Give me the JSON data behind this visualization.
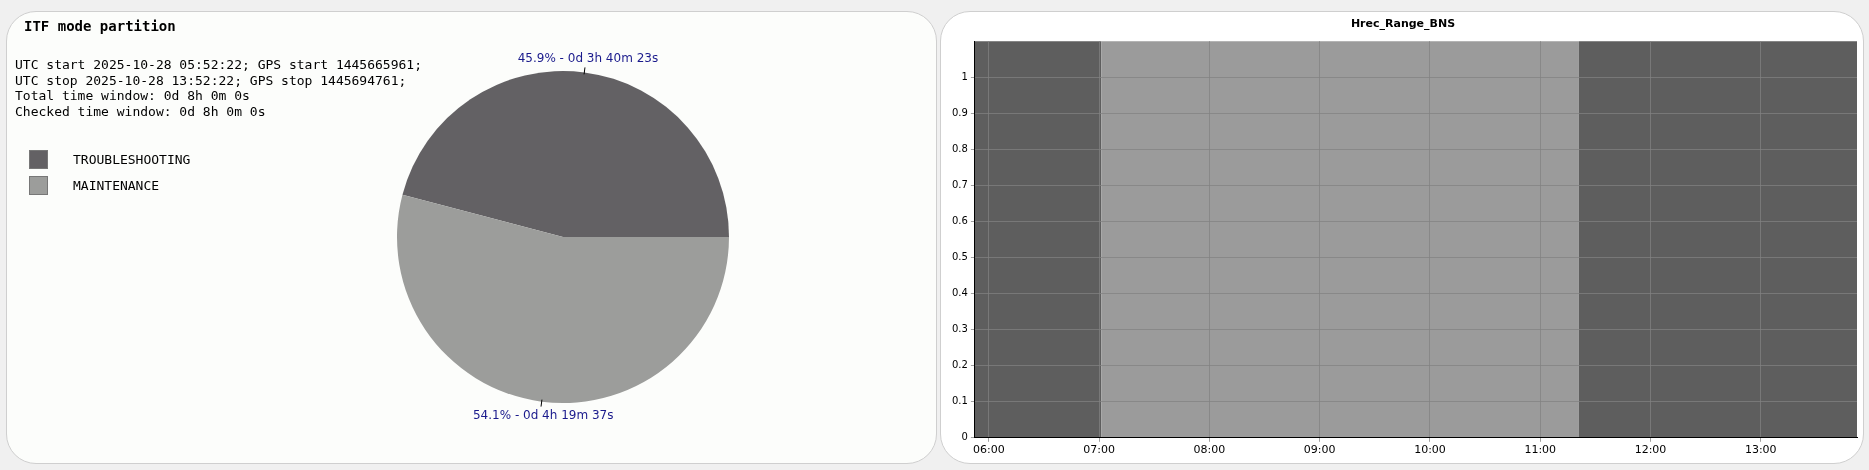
{
  "chart_data": [
    {
      "type": "pie",
      "title": "ITF mode partition",
      "annotations": [
        "UTC start 2025-10-28 05:52:22; GPS start 1445665961;",
        "UTC stop 2025-10-28 13:52:22; GPS stop 1445694761;",
        "Total time window: 0d 8h 0m 0s",
        "Checked time window: 0d 8h 0m 0s"
      ],
      "categories": [
        "TROUBLESHOOTING",
        "MAINTENANCE"
      ],
      "values": [
        45.9,
        54.1
      ],
      "colors": [
        "#636164",
        "#9c9d9b"
      ],
      "value_labels": [
        "45.9% - 0d 3h 40m 23s",
        "54.1% - 0d 4h 19m 37s"
      ],
      "legend": "top left"
    },
    {
      "type": "line",
      "title": "Hrec_Range_BNS",
      "xlim": [
        5.87278,
        13.87278
      ],
      "xticks": [
        {
          "value": 6,
          "label": "06:00"
        },
        {
          "value": 7,
          "label": "07:00"
        },
        {
          "value": 8,
          "label": "08:00"
        },
        {
          "value": 9,
          "label": "09:00"
        },
        {
          "value": 10,
          "label": "10:00"
        },
        {
          "value": 11,
          "label": "11:00"
        },
        {
          "value": 12,
          "label": "12:00"
        },
        {
          "value": 13,
          "label": "13:00"
        }
      ],
      "ylim": [
        0,
        1.1
      ],
      "yticks": [
        0,
        0.1,
        0.2,
        0.3,
        0.4,
        0.5,
        0.6,
        0.7,
        0.8,
        0.9,
        1
      ],
      "grid": true,
      "bands": [
        {
          "axis": "x",
          "from": 5.87278,
          "to": 7.02,
          "color": "#5e5e5e"
        },
        {
          "axis": "x",
          "from": 7.02,
          "to": 11.35,
          "color": "#9b9b9b"
        },
        {
          "axis": "x",
          "from": 11.35,
          "to": 13.87278,
          "color": "#5e5e5e"
        }
      ]
    }
  ]
}
